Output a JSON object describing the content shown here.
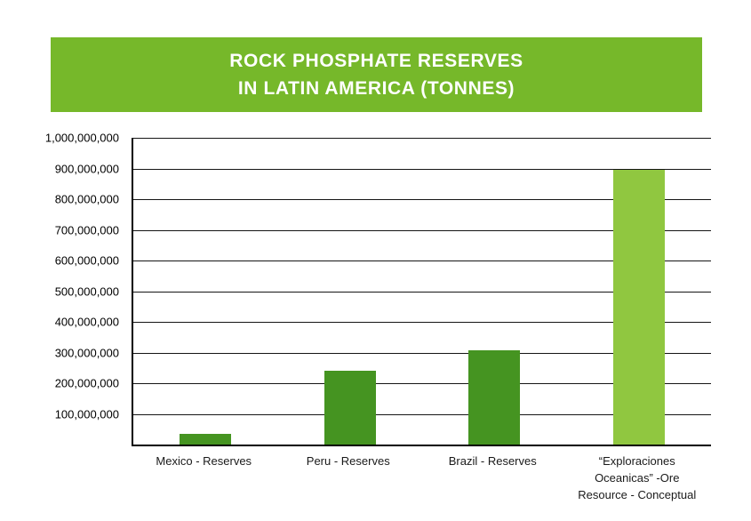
{
  "header": {
    "title_line1": "ROCK PHOSPHATE RESERVES",
    "title_line2": "IN LATIN AMERICA (TONNES)",
    "banner_color": "#76b82a"
  },
  "chart_data": {
    "type": "bar",
    "title": "ROCK PHOSPHATE RESERVES IN LATIN AMERICA (TONNES)",
    "categories": [
      "Mexico - Reserves",
      "Peru - Reserves",
      "Brazil - Reserves",
      "“Exploraciones Oceanicas” -Ore Resource - Conceptual"
    ],
    "values": [
      35000000,
      240000000,
      308000000,
      895000000
    ],
    "bar_colors": [
      "#459421",
      "#459421",
      "#459421",
      "#90c740"
    ],
    "ylim": [
      0,
      1000000000
    ],
    "ytick_interval": 100000000,
    "ytick_labels": [
      "100,000,000",
      "200,000,000",
      "300,000,000",
      "400,000,000",
      "500,000,000",
      "600,000,000",
      "700,000,000",
      "800,000,000",
      "900,000,000",
      "1,000,000,000"
    ],
    "grid": true,
    "legend": "none",
    "xlabel": "",
    "ylabel": ""
  }
}
